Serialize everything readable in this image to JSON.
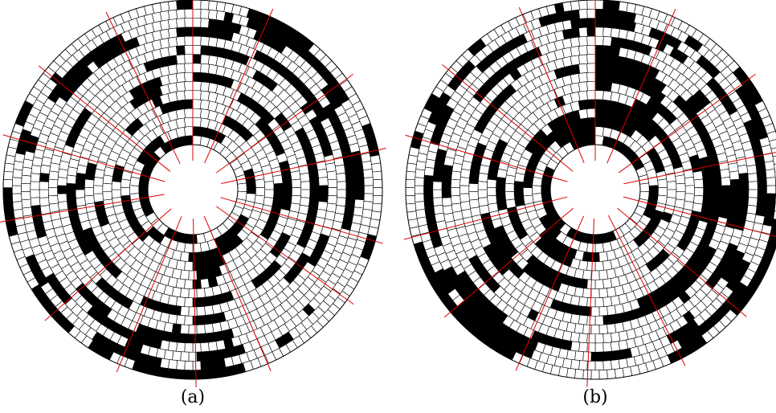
{
  "panels": [
    {
      "label": "(a)",
      "rings": 16,
      "sectors": 14,
      "seed": 7,
      "fill_density": 0.34
    },
    {
      "label": "(b)",
      "rings": 16,
      "sectors": 14,
      "seed": 29,
      "fill_density": 0.42
    }
  ],
  "colors": {
    "grid_line": "#000000",
    "filled_cell": "#000000",
    "empty_cell": "#ffffff",
    "sector_divider": "#e00000"
  }
}
